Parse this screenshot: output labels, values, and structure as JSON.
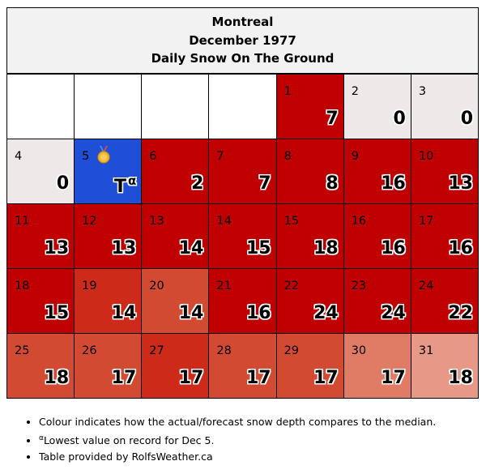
{
  "header": {
    "city": "Montreal",
    "period": "December 1977",
    "title": "Daily Snow On The Ground"
  },
  "colors": {
    "blank": "#ffffff",
    "zero": "#efe8e8",
    "record": "#1f4fd6",
    "deep": "#c00000",
    "mid1": "#cd2a1a",
    "mid2": "#d34a32",
    "mid3": "#e07b66",
    "light": "#e89886"
  },
  "rows": [
    [
      {
        "day": "",
        "value": "",
        "color": "blank"
      },
      {
        "day": "",
        "value": "",
        "color": "blank"
      },
      {
        "day": "",
        "value": "",
        "color": "blank"
      },
      {
        "day": "",
        "value": "",
        "color": "blank"
      },
      {
        "day": "1",
        "value": "7",
        "color": "deep"
      },
      {
        "day": "2",
        "value": "0",
        "color": "zero"
      },
      {
        "day": "3",
        "value": "0",
        "color": "zero"
      }
    ],
    [
      {
        "day": "4",
        "value": "0",
        "color": "zero"
      },
      {
        "day": "5",
        "value": "T",
        "sup": "α",
        "medal": true,
        "color": "record"
      },
      {
        "day": "6",
        "value": "2",
        "color": "deep"
      },
      {
        "day": "7",
        "value": "7",
        "color": "deep"
      },
      {
        "day": "8",
        "value": "8",
        "color": "deep"
      },
      {
        "day": "9",
        "value": "16",
        "color": "deep"
      },
      {
        "day": "10",
        "value": "13",
        "color": "deep"
      }
    ],
    [
      {
        "day": "11",
        "value": "13",
        "color": "deep"
      },
      {
        "day": "12",
        "value": "13",
        "color": "deep"
      },
      {
        "day": "13",
        "value": "14",
        "color": "deep"
      },
      {
        "day": "14",
        "value": "15",
        "color": "deep"
      },
      {
        "day": "15",
        "value": "18",
        "color": "deep"
      },
      {
        "day": "16",
        "value": "16",
        "color": "deep"
      },
      {
        "day": "17",
        "value": "16",
        "color": "deep"
      }
    ],
    [
      {
        "day": "18",
        "value": "15",
        "color": "deep"
      },
      {
        "day": "19",
        "value": "14",
        "color": "mid1"
      },
      {
        "day": "20",
        "value": "14",
        "color": "mid2"
      },
      {
        "day": "21",
        "value": "16",
        "color": "deep"
      },
      {
        "day": "22",
        "value": "24",
        "color": "deep"
      },
      {
        "day": "23",
        "value": "24",
        "color": "deep"
      },
      {
        "day": "24",
        "value": "22",
        "color": "deep"
      }
    ],
    [
      {
        "day": "25",
        "value": "18",
        "color": "mid2"
      },
      {
        "day": "26",
        "value": "17",
        "color": "mid2"
      },
      {
        "day": "27",
        "value": "17",
        "color": "mid1"
      },
      {
        "day": "28",
        "value": "17",
        "color": "mid2"
      },
      {
        "day": "29",
        "value": "17",
        "color": "mid2"
      },
      {
        "day": "30",
        "value": "17",
        "color": "mid3"
      },
      {
        "day": "31",
        "value": "18",
        "color": "light"
      }
    ]
  ],
  "notes": {
    "line1": "Colour indicates how the actual/forecast snow depth compares to the median.",
    "line2_sup": "α",
    "line2": "Lowest value on record for Dec 5.",
    "line3": "Table provided by RolfsWeather.ca"
  }
}
